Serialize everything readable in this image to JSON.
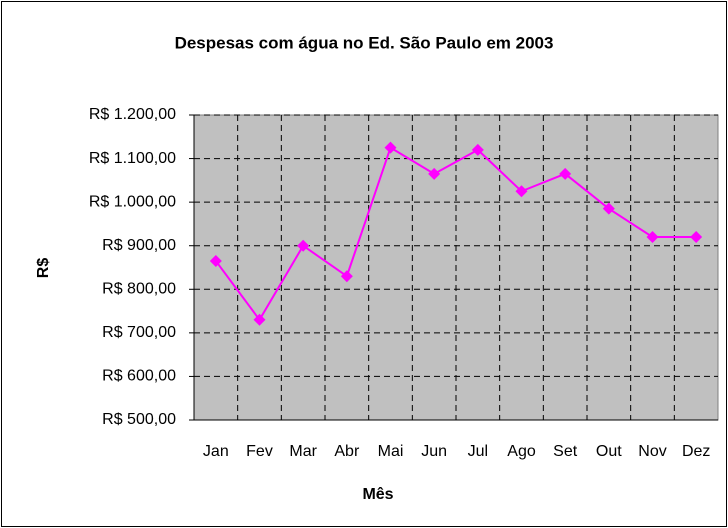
{
  "chart_data": {
    "type": "line",
    "title": "Despesas com água no Ed. São Paulo em 2003",
    "x_label": "Mês",
    "y_label": "R$",
    "categories": [
      "Jan",
      "Fev",
      "Mar",
      "Abr",
      "Mai",
      "Jun",
      "Jul",
      "Ago",
      "Set",
      "Out",
      "Nov",
      "Dez"
    ],
    "values": [
      865,
      730,
      900,
      830,
      1125,
      1065,
      1120,
      1025,
      1065,
      985,
      920,
      920
    ],
    "color": "#ff00ff",
    "ylim": [
      500,
      1200
    ],
    "yticks": [
      {
        "value": 500,
        "label": "R$ 500,00"
      },
      {
        "value": 600,
        "label": "R$ 600,00"
      },
      {
        "value": 700,
        "label": "R$ 700,00"
      },
      {
        "value": 800,
        "label": "R$ 800,00"
      },
      {
        "value": 900,
        "label": "R$ 900,00"
      },
      {
        "value": 1000,
        "label": "R$ 1.000,00"
      },
      {
        "value": 1100,
        "label": "R$ 1.100,00"
      },
      {
        "value": 1200,
        "label": "R$ 1.200,00"
      }
    ],
    "grid": true,
    "plot_background": "#c0c0c0"
  }
}
